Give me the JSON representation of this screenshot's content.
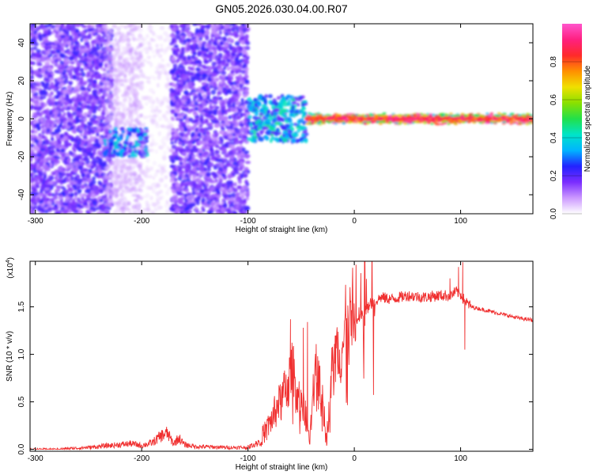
{
  "figure_title": "GN05.2026.030.04.00.R07",
  "colors": {
    "line": "#f03030",
    "frame": "#000000",
    "background": "#ffffff"
  },
  "chart_data": [
    {
      "type": "heatmap",
      "xlabel": "Height of straight line (km)",
      "ylabel": "Frequency (Hz)",
      "xlim": [
        -305,
        168
      ],
      "ylim": [
        -50,
        50
      ],
      "x_ticks": [
        -300,
        -200,
        -100,
        0,
        100
      ],
      "x_tick_labels": [
        "-300",
        "-200",
        "-100",
        "0",
        "100"
      ],
      "y_ticks": [
        -40,
        -20,
        0,
        20,
        40
      ],
      "y_tick_labels": [
        "-40",
        "-20",
        "0",
        "20",
        "40"
      ],
      "colorbar": {
        "label": "Normalized spectral amplitude",
        "range": [
          0,
          1
        ],
        "ticks": [
          0.0,
          0.2,
          0.4,
          0.6,
          0.8
        ],
        "tick_labels": [
          "0.0",
          "0.2",
          "0.4",
          "0.6",
          "0.8"
        ],
        "colormap": [
          "#ffffff",
          "#cc99ff",
          "#7a2cff",
          "#2222ff",
          "#00b4ff",
          "#00e4c8",
          "#22e04a",
          "#8ae000",
          "#f0e000",
          "#ff9000",
          "#ff2a2a",
          "#ff2080",
          "#ff55cc"
        ]
      },
      "regions": [
        {
          "x_range": [
            -305,
            -228
          ],
          "y_range": [
            -50,
            50
          ],
          "level": 0.18,
          "note": "broadband noise"
        },
        {
          "x_range": [
            -235,
            -200
          ],
          "y_range": [
            -50,
            50
          ],
          "level": 0.08
        },
        {
          "x_range": [
            -235,
            -195
          ],
          "y_range": [
            -20,
            -5
          ],
          "level": 0.3
        },
        {
          "x_range": [
            -200,
            -170
          ],
          "y_range": [
            -50,
            50
          ],
          "level": 0.05
        },
        {
          "x_range": [
            -172,
            -100
          ],
          "y_range": [
            -50,
            50
          ],
          "level": 0.18
        },
        {
          "x_range": [
            -100,
            -45
          ],
          "y_range": [
            -12,
            12
          ],
          "level": 0.35
        },
        {
          "x_range": [
            -45,
            168
          ],
          "y_range": [
            -3,
            3
          ],
          "level": 0.75,
          "note": "narrow band near 0 Hz"
        }
      ]
    },
    {
      "type": "line",
      "xlabel": "Height of straight line (km)",
      "ylabel": "SNR (10 * v/v)",
      "y_multiplier_label": "(x10",
      "y_multiplier_exponent": "4",
      "xlim": [
        -305,
        168
      ],
      "ylim": [
        -0.02,
        1.98
      ],
      "x_ticks": [
        -300,
        -200,
        -100,
        0,
        100
      ],
      "x_tick_labels": [
        "-300",
        "-200",
        "-100",
        "0",
        "100"
      ],
      "y_ticks": [
        0.0,
        0.5,
        1.0,
        1.5
      ],
      "y_tick_labels": [
        "0.0",
        "0.5",
        "1.0",
        "1.5"
      ],
      "series": [
        {
          "x": [
            -305,
            -280,
            -250,
            -230,
            -220,
            -210,
            -200,
            -190,
            -182,
            -176,
            -170,
            -165,
            -160,
            -150,
            -120,
            -100,
            -90,
            -80,
            -72,
            -68,
            -62,
            -58,
            -54,
            -50,
            -46,
            -42,
            -38,
            -34,
            -30,
            -26,
            -22,
            -18,
            -14,
            -10,
            -6,
            -2,
            5,
            15,
            25,
            35,
            50,
            65,
            80,
            90,
            96,
            100,
            104,
            110,
            125,
            140,
            155,
            168
          ],
          "y": [
            0.0,
            0.0,
            0.02,
            0.04,
            0.05,
            0.06,
            0.04,
            0.07,
            0.14,
            0.17,
            0.06,
            0.12,
            0.05,
            0.03,
            0.02,
            0.02,
            0.08,
            0.26,
            0.45,
            0.52,
            0.7,
            0.82,
            0.6,
            0.45,
            0.38,
            0.05,
            0.65,
            0.9,
            0.55,
            0.1,
            0.7,
            0.95,
            1.05,
            1.12,
            1.2,
            1.28,
            1.38,
            1.52,
            1.6,
            1.58,
            1.62,
            1.6,
            1.62,
            1.62,
            1.66,
            1.63,
            1.56,
            1.5,
            1.46,
            1.42,
            1.38,
            1.36
          ],
          "spikes": [
            {
              "x": -60,
              "y": 1.37
            },
            {
              "x": -48,
              "y": 1.28
            },
            {
              "x": -44,
              "y": 1.34
            },
            {
              "x": 10,
              "y": 1.3
            },
            {
              "x": 90,
              "y": 1.8
            },
            {
              "x": 98,
              "y": 1.92
            },
            {
              "x": 102,
              "y": 1.97
            },
            {
              "x": 104,
              "y": 1.05
            }
          ]
        }
      ]
    }
  ]
}
